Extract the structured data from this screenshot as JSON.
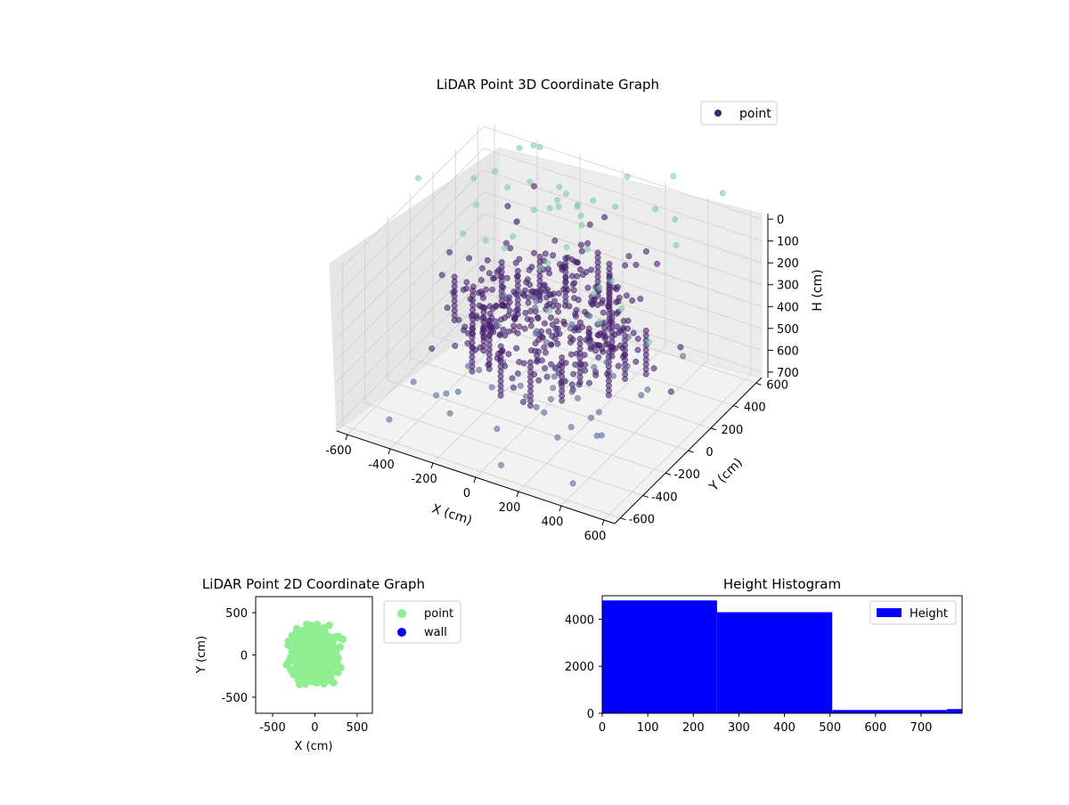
{
  "figure": {
    "panels": {
      "plot3d": {
        "title": "LiDAR Point 3D Coordinate Graph"
      },
      "plot2d": {
        "title": "LiDAR Point 2D Coordinate Graph"
      },
      "hist": {
        "title": "Height Histogram"
      }
    }
  },
  "colors": {
    "point3d_dark": "#46226e",
    "point3d_mid": "#5a6a96",
    "point3d_light": "#7ccbb3",
    "point2d": "#90ee90",
    "wall": "#0000ff",
    "histogram": "#0000ff",
    "pane": "#f2f2f2",
    "grid": "#cfcfcf"
  },
  "chart_data": [
    {
      "type": "scatter",
      "projection": "3d",
      "title": "LiDAR Point 3D Coordinate Graph",
      "xlabel": "X (cm)",
      "ylabel": "Y (cm)",
      "zlabel": "H (cm)",
      "xlim": [
        -650,
        650
      ],
      "ylim": [
        -650,
        650
      ],
      "zlim": [
        0,
        750
      ],
      "z_inverted": true,
      "xticks": [
        -600,
        -400,
        -200,
        0,
        200,
        400,
        600
      ],
      "yticks": [
        -600,
        -400,
        -200,
        0,
        200,
        400,
        600
      ],
      "zticks": [
        0,
        100,
        200,
        300,
        400,
        500,
        600,
        700
      ],
      "legend": {
        "position": "top-right",
        "entries": [
          "point"
        ]
      },
      "grid": true,
      "colormap": "viridis (colored by height)",
      "series": [
        {
          "name": "point"
        }
      ]
    },
    {
      "type": "scatter",
      "title": "LiDAR Point 2D Coordinate Graph",
      "xlabel": "X (cm)",
      "ylabel": "Y (cm)",
      "xlim": [
        -700,
        680
      ],
      "ylim": [
        -690,
        690
      ],
      "xticks": [
        -500,
        0,
        500
      ],
      "yticks": [
        -500,
        0,
        500
      ],
      "legend": {
        "position": "outside-right",
        "entries": [
          "point",
          "wall"
        ]
      },
      "series": [
        {
          "name": "point",
          "color": "#90ee90"
        },
        {
          "name": "wall",
          "color": "#0000ff"
        }
      ]
    },
    {
      "type": "bar",
      "subtype": "histogram",
      "title": "Height Histogram",
      "xlabel": "",
      "ylabel": "",
      "xlim": [
        0,
        790
      ],
      "ylim": [
        0,
        5000
      ],
      "xticks": [
        0,
        100,
        200,
        300,
        400,
        500,
        600,
        700
      ],
      "yticks": [
        0,
        2000,
        4000
      ],
      "bins": [
        [
          0,
          252
        ],
        [
          252,
          505
        ],
        [
          505,
          757
        ],
        [
          757,
          790
        ]
      ],
      "values": [
        4800,
        4300,
        140,
        180
      ],
      "legend": {
        "position": "top-right",
        "entries": [
          "Height"
        ]
      },
      "series": [
        {
          "name": "Height",
          "color": "#0000ff"
        }
      ]
    }
  ]
}
